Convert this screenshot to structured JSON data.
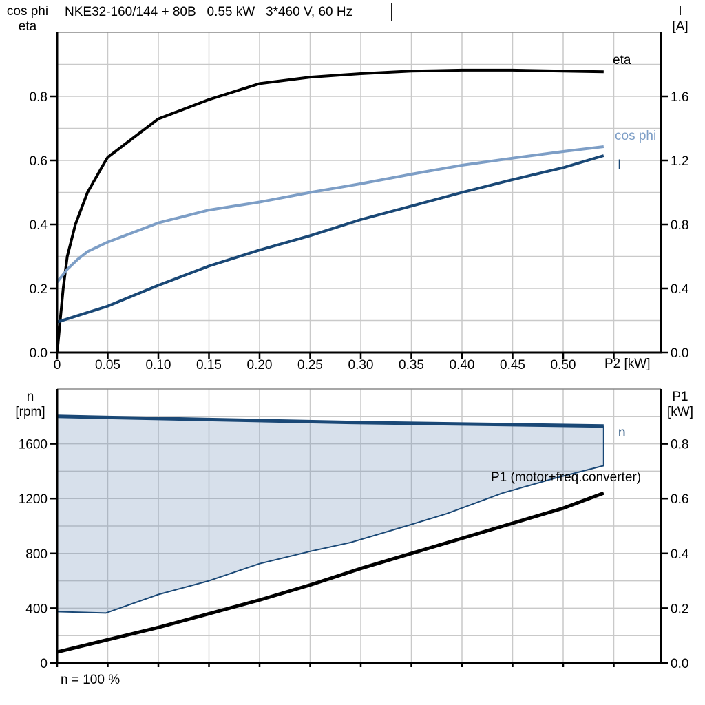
{
  "title_box": {
    "text": "NKE32-160/144 + 80B   0.55 kW   3*460 V, 60 Hz"
  },
  "colors": {
    "eta": "#000000",
    "cos_phi": "#7D9EC6",
    "current": "#1A4876",
    "n_line": "#1A4876",
    "p1_line": "#000000",
    "area_fill": "rgba(106,140,180,0.27)",
    "grid": "#c9c9c9",
    "frame_top": "#8a8a8a",
    "axis": "#000000"
  },
  "top_chart": {
    "left_axis_title": [
      "cos phi",
      "eta"
    ],
    "right_axis_title": [
      "I",
      "[A]"
    ],
    "x_axis_label": "P2 [kW]",
    "x_ticks": [
      {
        "v": 0,
        "t": "0"
      },
      {
        "v": 0.05,
        "t": "0.05"
      },
      {
        "v": 0.1,
        "t": "0.10"
      },
      {
        "v": 0.15,
        "t": "0.15"
      },
      {
        "v": 0.2,
        "t": "0.20"
      },
      {
        "v": 0.25,
        "t": "0.25"
      },
      {
        "v": 0.3,
        "t": "0.30"
      },
      {
        "v": 0.35,
        "t": "0.35"
      },
      {
        "v": 0.4,
        "t": "0.40"
      },
      {
        "v": 0.45,
        "t": "0.45"
      },
      {
        "v": 0.5,
        "t": "0.50"
      },
      {
        "v": 0.55,
        "t": ""
      }
    ],
    "y_left_ticks": [
      {
        "v": 0,
        "t": "0.0"
      },
      {
        "v": 0.2,
        "t": "0.2"
      },
      {
        "v": 0.4,
        "t": "0.4"
      },
      {
        "v": 0.6,
        "t": "0.6"
      },
      {
        "v": 0.8,
        "t": "0.8"
      }
    ],
    "y_right_ticks": [
      {
        "v": 0,
        "t": "0.0"
      },
      {
        "v": 0.4,
        "t": "0.4"
      },
      {
        "v": 0.8,
        "t": "0.8"
      },
      {
        "v": 1.2,
        "t": "1.2"
      },
      {
        "v": 1.6,
        "t": "1.6"
      }
    ],
    "curve_labels": {
      "eta": "eta",
      "cos_phi": "cos phi",
      "current": "I"
    }
  },
  "bottom_chart": {
    "left_axis_title": [
      "n",
      "[rpm]"
    ],
    "right_axis_title": [
      "P1",
      "[kW]"
    ],
    "y_left_ticks": [
      {
        "v": 0,
        "t": "0"
      },
      {
        "v": 400,
        "t": "400"
      },
      {
        "v": 800,
        "t": "800"
      },
      {
        "v": 1200,
        "t": "1200"
      },
      {
        "v": 1600,
        "t": "1600"
      }
    ],
    "y_right_ticks": [
      {
        "v": 0,
        "t": "0.0"
      },
      {
        "v": 0.2,
        "t": "0.2"
      },
      {
        "v": 0.4,
        "t": "0.4"
      },
      {
        "v": 0.6,
        "t": "0.6"
      },
      {
        "v": 0.8,
        "t": "0.8"
      }
    ],
    "curve_labels": {
      "n": "n",
      "p1": "P1 (motor+freq.converter)"
    },
    "footer": "n = 100 %"
  },
  "chart_data": [
    {
      "type": "line",
      "title": "NKE32-160/144 + 80B  0.55 kW  3*460 V, 60 Hz",
      "xlabel": "P2 [kW]",
      "x_range": [
        0,
        0.5966
      ],
      "grid": {
        "x_step": 0.05,
        "y_left_step": 0.1
      },
      "axes": {
        "left": {
          "label": "cos phi / eta",
          "range": [
            0,
            1.0
          ]
        },
        "right": {
          "label": "I [A]",
          "range": [
            0,
            2.0
          ]
        }
      },
      "series": [
        {
          "name": "eta",
          "axis": "left",
          "color": "eta",
          "width": 4,
          "points": [
            [
              0,
              0
            ],
            [
              0.003,
              0.1
            ],
            [
              0.006,
              0.2
            ],
            [
              0.01,
              0.3
            ],
            [
              0.018,
              0.4
            ],
            [
              0.03,
              0.5
            ],
            [
              0.048,
              0.6
            ],
            [
              0.05,
              0.61
            ],
            [
              0.1,
              0.73
            ],
            [
              0.15,
              0.79
            ],
            [
              0.2,
              0.84
            ],
            [
              0.25,
              0.86
            ],
            [
              0.3,
              0.871
            ],
            [
              0.35,
              0.879
            ],
            [
              0.4,
              0.882
            ],
            [
              0.45,
              0.882
            ],
            [
              0.5,
              0.879
            ],
            [
              0.54,
              0.877
            ]
          ]
        },
        {
          "name": "cos phi",
          "axis": "left",
          "color": "cos_phi",
          "width": 4,
          "points": [
            [
              0,
              0.22
            ],
            [
              0.01,
              0.26
            ],
            [
              0.02,
              0.29
            ],
            [
              0.03,
              0.315
            ],
            [
              0.05,
              0.345
            ],
            [
              0.1,
              0.405
            ],
            [
              0.15,
              0.445
            ],
            [
              0.2,
              0.47
            ],
            [
              0.25,
              0.5
            ],
            [
              0.3,
              0.527
            ],
            [
              0.35,
              0.557
            ],
            [
              0.4,
              0.585
            ],
            [
              0.45,
              0.607
            ],
            [
              0.5,
              0.628
            ],
            [
              0.54,
              0.643
            ]
          ]
        },
        {
          "name": "I",
          "axis": "right",
          "color": "current",
          "width": 4,
          "points": [
            [
              0,
              0.19
            ],
            [
              0.05,
              0.29
            ],
            [
              0.1,
              0.42
            ],
            [
              0.15,
              0.54
            ],
            [
              0.2,
              0.64
            ],
            [
              0.25,
              0.73
            ],
            [
              0.3,
              0.83
            ],
            [
              0.35,
              0.915
            ],
            [
              0.4,
              1.0
            ],
            [
              0.45,
              1.08
            ],
            [
              0.5,
              1.155
            ],
            [
              0.54,
              1.23
            ]
          ]
        }
      ]
    },
    {
      "type": "line",
      "x_range": [
        0,
        0.5966
      ],
      "grid": {
        "x_step": 0.05,
        "y_left_step": 200
      },
      "axes": {
        "left": {
          "label": "n [rpm]",
          "range": [
            0,
            2000
          ]
        },
        "right": {
          "label": "P1 [kW]",
          "range": [
            0,
            1.0
          ]
        }
      },
      "area": {
        "upper": "n",
        "lower": "n_min",
        "color": "area_fill",
        "close_right": true
      },
      "series": [
        {
          "name": "n",
          "axis": "left",
          "color": "n_line",
          "width": 5,
          "points": [
            [
              0,
              1800
            ],
            [
              0.29,
              1756
            ],
            [
              0.54,
              1730
            ]
          ]
        },
        {
          "name": "n_min",
          "axis": "left",
          "color": "n_line",
          "width": 2,
          "points": [
            [
              0,
              375
            ],
            [
              0.048,
              365
            ],
            [
              0.1,
              500
            ],
            [
              0.15,
              600
            ],
            [
              0.2,
              725
            ],
            [
              0.25,
              815
            ],
            [
              0.29,
              880
            ],
            [
              0.345,
              1000
            ],
            [
              0.385,
              1090
            ],
            [
              0.44,
              1240
            ],
            [
              0.49,
              1345
            ],
            [
              0.54,
              1440
            ]
          ]
        },
        {
          "name": "P1 (motor+freq.converter)",
          "axis": "right",
          "color": "p1_line",
          "width": 5,
          "points": [
            [
              0,
              0.04
            ],
            [
              0.05,
              0.085
            ],
            [
              0.1,
              0.13
            ],
            [
              0.15,
              0.18
            ],
            [
              0.2,
              0.23
            ],
            [
              0.25,
              0.285
            ],
            [
              0.3,
              0.345
            ],
            [
              0.35,
              0.4
            ],
            [
              0.4,
              0.455
            ],
            [
              0.45,
              0.51
            ],
            [
              0.5,
              0.565
            ],
            [
              0.54,
              0.62
            ]
          ]
        }
      ]
    }
  ]
}
